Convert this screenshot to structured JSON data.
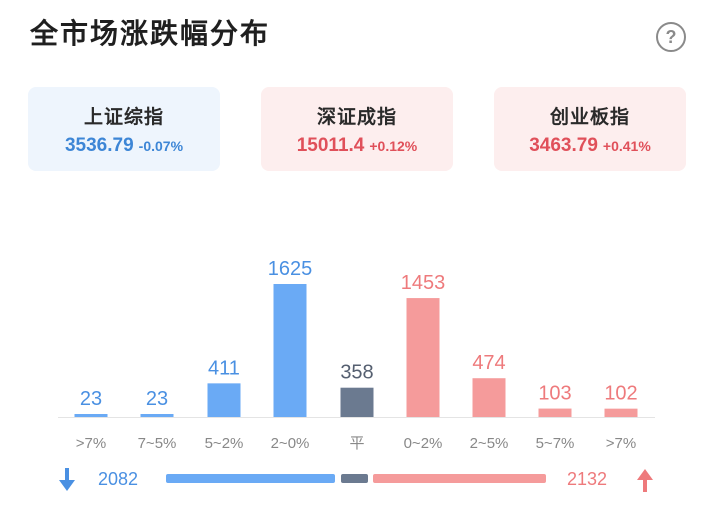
{
  "header": {
    "title": "全市场涨跌幅分布",
    "help_label": "?"
  },
  "indices": [
    {
      "name": "上证综指",
      "value": "3536.79",
      "change": "-0.07%",
      "direction": "down"
    },
    {
      "name": "深证成指",
      "value": "15011.4",
      "change": "+0.12%",
      "direction": "up"
    },
    {
      "name": "创业板指",
      "value": "3463.79",
      "change": "+0.41%",
      "direction": "up"
    }
  ],
  "colors": {
    "down": "#6aaaf5",
    "flat": "#6b7a90",
    "up": "#f59b9b",
    "down_text": "#4a90e2",
    "up_text": "#ee7a7c",
    "flat_text": "#555f70"
  },
  "chart_data": {
    "type": "bar",
    "title": "",
    "categories": [
      ">7%",
      "7~5%",
      "5~2%",
      "2~0%",
      "平",
      "0~2%",
      "2~5%",
      "5~7%",
      ">7%"
    ],
    "values": [
      23,
      23,
      411,
      1625,
      358,
      1453,
      474,
      103,
      102
    ],
    "groups": [
      "down",
      "down",
      "down",
      "down",
      "flat",
      "up",
      "up",
      "up",
      "up"
    ],
    "xlabel": "",
    "ylabel": ""
  },
  "summary": {
    "down_count": "2082",
    "up_count": "2132"
  }
}
